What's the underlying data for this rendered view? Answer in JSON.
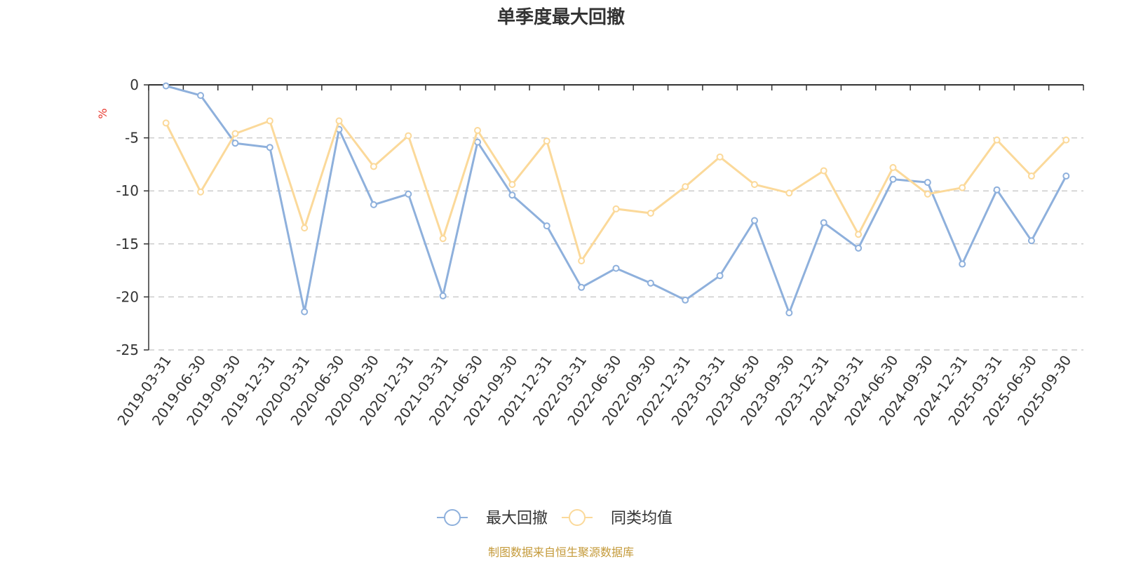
{
  "chart_data": {
    "type": "line",
    "title": "单季度最大回撤",
    "ylabel": "%",
    "xlabel": "",
    "ylim": [
      -25,
      0
    ],
    "yticks": [
      0,
      -5,
      -10,
      -15,
      -20,
      -25
    ],
    "grid": true,
    "legend_position": "bottom",
    "categories": [
      "2019-03-31",
      "2019-06-30",
      "2019-09-30",
      "2019-12-31",
      "2020-03-31",
      "2020-06-30",
      "2020-09-30",
      "2020-12-31",
      "2021-03-31",
      "2021-06-30",
      "2021-09-30",
      "2021-12-31",
      "2022-03-31",
      "2022-06-30",
      "2022-09-30",
      "2022-12-31",
      "2023-03-31",
      "2023-06-30",
      "2023-09-30",
      "2023-12-31",
      "2024-03-31",
      "2024-06-30",
      "2024-09-30",
      "2024-12-31",
      "2025-03-31",
      "2025-06-30",
      "2025-09-30"
    ],
    "series": [
      {
        "name": "最大回撤",
        "color": "#8eb0dc",
        "values": [
          -0.1,
          -1.0,
          -5.5,
          -5.9,
          -21.4,
          -4.2,
          -11.3,
          -10.3,
          -19.9,
          -5.4,
          -10.4,
          -13.3,
          -19.1,
          -17.3,
          -18.7,
          -20.3,
          -18.0,
          -12.8,
          -21.5,
          -13.0,
          -15.4,
          -8.9,
          -9.2,
          -16.9,
          -9.9,
          -14.7,
          -8.6
        ]
      },
      {
        "name": "同类均值",
        "color": "#fbd99a",
        "values": [
          -3.6,
          -10.1,
          -4.6,
          -3.4,
          -13.5,
          -3.4,
          -7.7,
          -4.8,
          -14.5,
          -4.3,
          -9.4,
          -5.3,
          -16.6,
          -11.7,
          -12.1,
          -9.6,
          -6.8,
          -9.4,
          -10.2,
          -8.1,
          -14.1,
          -7.8,
          -10.3,
          -9.7,
          -5.2,
          -8.6,
          -5.2
        ]
      }
    ],
    "source": "制图数据来自恒生聚源数据库"
  }
}
